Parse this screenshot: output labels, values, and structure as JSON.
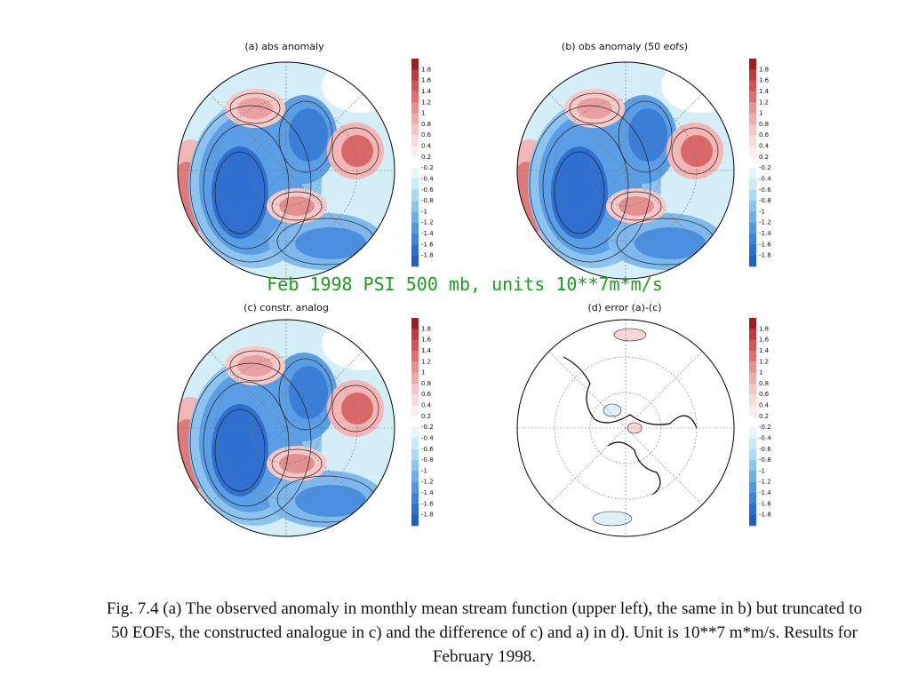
{
  "figure": {
    "title": "Feb 1998 PSI 500 mb, units 10**7m*m/s",
    "panels": [
      {
        "title": "(a) abs anomaly"
      },
      {
        "title": "(b) obs anomaly (50 eofs)"
      },
      {
        "title": "(c) constr. analog"
      },
      {
        "title": "(d) error (a)-(c)"
      }
    ],
    "colorbar_labels": [
      "1.8",
      "1.6",
      "1.4",
      "1.2",
      "1",
      "0.8",
      "0.6",
      "0.4",
      "0.2",
      "-0.2",
      "-0.4",
      "-0.6",
      "-0.8",
      "-1",
      "-1.2",
      "-1.4",
      "-1.6",
      "-1.8"
    ]
  },
  "caption": "Fig. 7.4 (a) The observed anomaly in monthly mean stream function (upper left), the same in b) but truncated to 50 EOFs, the constructed analogue in c) and the difference of c) and a) in d). Unit is 10**7 m*m/s. Results for February 1998."
}
